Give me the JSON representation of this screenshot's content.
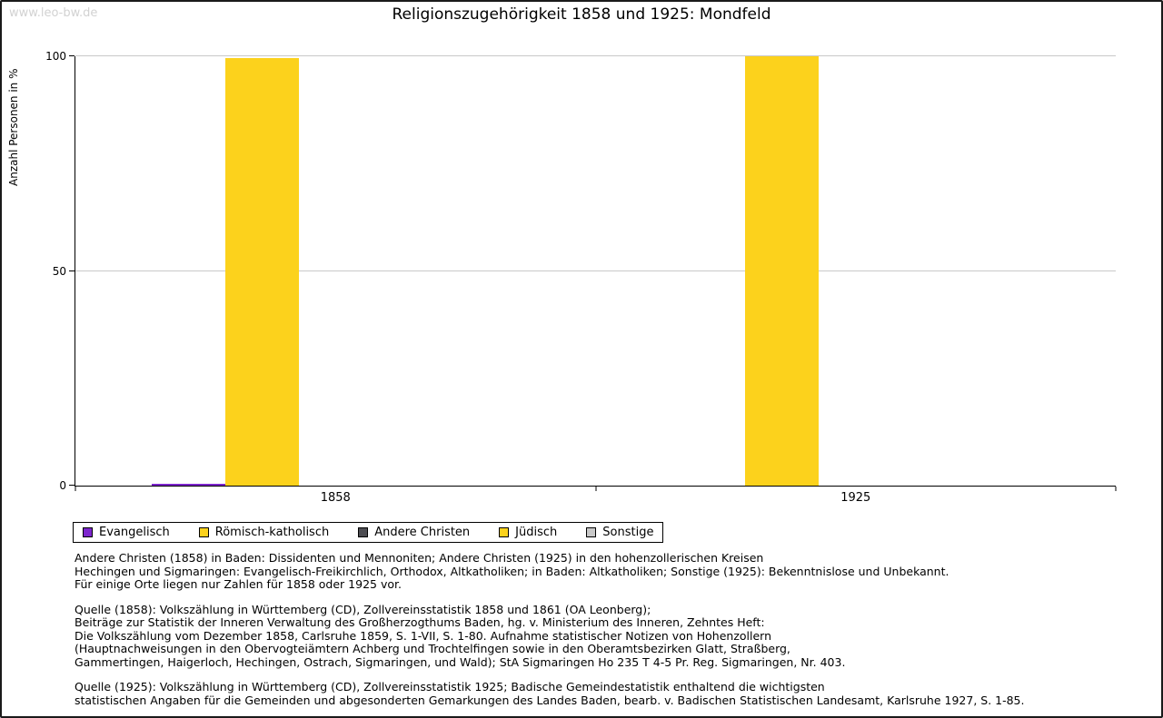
{
  "watermark": "www.leo-bw.de",
  "chart_data": {
    "type": "bar",
    "title": "Religionszugehörigkeit 1858 und 1925: Mondfeld",
    "ylabel": "Anzahl Personen in %",
    "xlabel": "",
    "ylim": [
      0,
      100
    ],
    "yticks": [
      0,
      50,
      100
    ],
    "grid": true,
    "legend_position": "bottom-left",
    "categories": [
      "1858",
      "1925"
    ],
    "series": [
      {
        "name": "Evangelisch",
        "color": "#7d26cd",
        "values": [
          0.5,
          0
        ]
      },
      {
        "name": "Römisch-katholisch",
        "color": "#fcd21c",
        "values": [
          99.5,
          100
        ]
      },
      {
        "name": "Andere Christen",
        "color": "#4d4d52",
        "values": [
          0,
          0
        ]
      },
      {
        "name": "Jüdisch",
        "color": "#fcd21c",
        "values": [
          0,
          0
        ]
      },
      {
        "name": "Sonstige",
        "color": "#c8c8c8",
        "values": [
          0,
          0
        ]
      }
    ]
  },
  "notes": [
    "Andere Christen (1858) in Baden: Dissidenten und Mennoniten; Andere Christen (1925) in den hohenzollerischen Kreisen\nHechingen und Sigmaringen: Evangelisch-Freikirchlich, Orthodox, Altkatholiken; in Baden: Altkatholiken; Sonstige (1925): Bekenntnislose und Unbekannt.\nFür einige Orte liegen nur Zahlen für 1858 oder 1925 vor.",
    "Quelle (1858): Volkszählung in Württemberg (CD), Zollvereinsstatistik 1858 und 1861 (OA Leonberg);\nBeiträge zur Statistik der Inneren Verwaltung des Großherzogthums Baden, hg. v. Ministerium des Inneren, Zehntes Heft:\nDie Volkszählung vom Dezember 1858, Carlsruhe 1859, S. 1-VII, S. 1-80. Aufnahme statistischer Notizen von Hohenzollern\n(Hauptnachweisungen in den Obervogteiämtern Achberg und Trochtelfingen sowie in den Oberamtsbezirken Glatt, Straßberg,\nGammertingen, Haigerloch, Hechingen, Ostrach, Sigmaringen, und Wald); StA Sigmaringen Ho 235 T 4-5 Pr. Reg. Sigmaringen, Nr. 403.",
    "Quelle (1925): Volkszählung in Württemberg (CD), Zollvereinsstatistik 1925; Badische Gemeindestatistik enthaltend die wichtigsten\nstatistischen Angaben für die Gemeinden und abgesonderten Gemarkungen des Landes Baden, bearb. v. Badischen Statistischen Landesamt, Karlsruhe 1927, S. 1-85."
  ]
}
